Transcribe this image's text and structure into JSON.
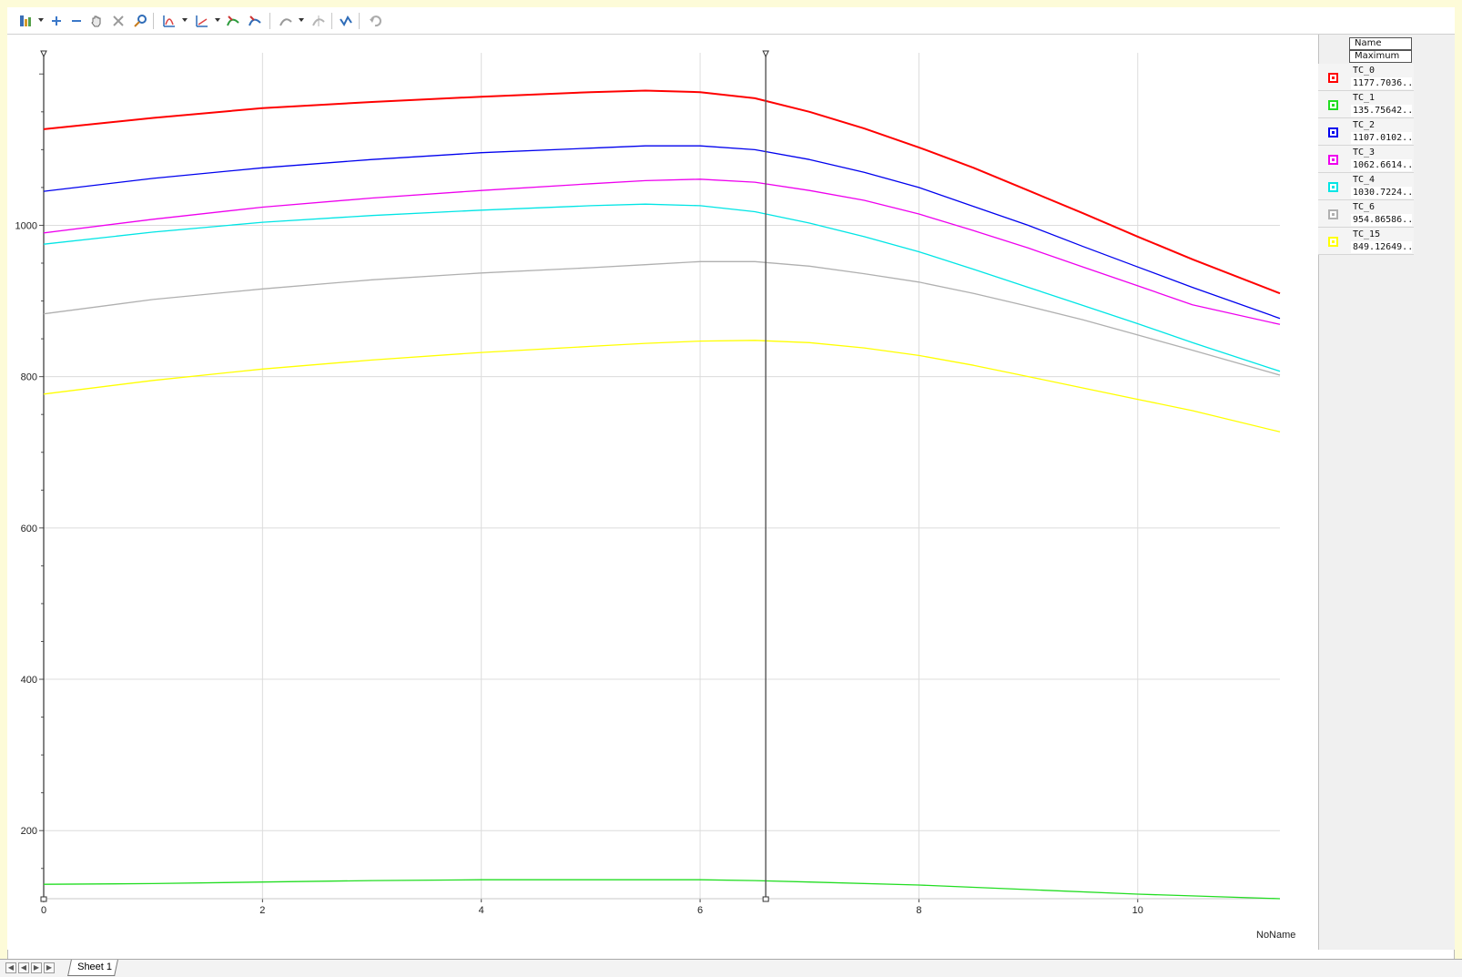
{
  "toolbar": {
    "icons": [
      "chart-settings-icon",
      "zoom-in-icon",
      "zoom-out-icon",
      "pan-hand-icon",
      "reset-zoom-icon",
      "zoom-fit-icon",
      "measure-icon",
      "axis-icon",
      "curve-add-icon",
      "curve-remove-icon",
      "cursor-icon",
      "cursor-remove-icon",
      "curve-fit-icon",
      "undo-icon"
    ]
  },
  "legend": {
    "header_name": "Name",
    "header_value": "Maximum",
    "rows": [
      {
        "name": "TC_0",
        "value": "1177.7036...",
        "color": "#ff0000"
      },
      {
        "name": "TC_1",
        "value": "135.75642...",
        "color": "#22dd22"
      },
      {
        "name": "TC_2",
        "value": "1107.0102...",
        "color": "#0000ee"
      },
      {
        "name": "TC_3",
        "value": "1062.6614...",
        "color": "#ee00ee"
      },
      {
        "name": "TC_4",
        "value": "1030.7224...",
        "color": "#00e5e5"
      },
      {
        "name": "TC_6",
        "value": "954.86586...",
        "color": "#b0b0b0"
      },
      {
        "name": "TC_15",
        "value": "849.12649...",
        "color": "#ffff00"
      }
    ]
  },
  "chart_data": {
    "type": "line",
    "title": "",
    "xlabel": "NoName",
    "ylabel": "",
    "xlim": [
      0,
      11.3
    ],
    "ylim": [
      110,
      1228
    ],
    "x_ticks": [
      "0",
      "2",
      "4",
      "6",
      "8",
      "10"
    ],
    "x_tick_values": [
      0,
      2,
      4,
      6,
      8,
      10
    ],
    "y_ticks": [
      "200",
      "400",
      "600",
      "800",
      "1000"
    ],
    "y_tick_values": [
      200,
      400,
      600,
      800,
      1000
    ],
    "grid": true,
    "cursor_x": 6.6,
    "series": [
      {
        "name": "TC_0",
        "color": "#ff0000",
        "x": [
          0,
          1,
          2,
          3,
          4,
          5,
          5.5,
          6,
          6.5,
          7,
          7.5,
          8,
          8.5,
          9,
          9.5,
          10,
          10.5,
          11.3
        ],
        "y": [
          1127,
          1142,
          1155,
          1163,
          1170,
          1176,
          1178,
          1176,
          1168,
          1150,
          1128,
          1103,
          1076,
          1046,
          1016,
          985,
          955,
          910
        ]
      },
      {
        "name": "TC_1",
        "color": "#22dd22",
        "x": [
          0,
          1,
          2,
          3,
          4,
          5,
          6,
          6.5,
          7,
          8,
          9,
          10,
          11.3
        ],
        "y": [
          129,
          130,
          132,
          134,
          135,
          135,
          135,
          134,
          132,
          128,
          122,
          116,
          110
        ]
      },
      {
        "name": "TC_2",
        "color": "#0000ee",
        "x": [
          0,
          1,
          2,
          3,
          4,
          5,
          5.5,
          6,
          6.5,
          7,
          7.5,
          8,
          8.5,
          9,
          9.5,
          10,
          10.5,
          11.3
        ],
        "y": [
          1045,
          1062,
          1076,
          1087,
          1096,
          1102,
          1105,
          1105,
          1100,
          1087,
          1070,
          1050,
          1025,
          1000,
          972,
          945,
          918,
          877
        ]
      },
      {
        "name": "TC_3",
        "color": "#ee00ee",
        "x": [
          0,
          1,
          2,
          3,
          4,
          5,
          5.5,
          6,
          6.5,
          7,
          7.5,
          8,
          8.5,
          9,
          9.5,
          10,
          10.5,
          11.3
        ],
        "y": [
          990,
          1008,
          1024,
          1036,
          1046,
          1055,
          1059,
          1061,
          1057,
          1046,
          1033,
          1015,
          993,
          970,
          945,
          920,
          895,
          869
        ]
      },
      {
        "name": "TC_4",
        "color": "#00e5e5",
        "x": [
          0,
          1,
          2,
          3,
          4,
          5,
          5.5,
          6,
          6.5,
          7,
          7.5,
          8,
          8.5,
          9,
          9.5,
          10,
          10.5,
          11.3
        ],
        "y": [
          975,
          991,
          1004,
          1013,
          1020,
          1026,
          1028,
          1026,
          1018,
          1003,
          985,
          965,
          942,
          918,
          894,
          870,
          845,
          807
        ]
      },
      {
        "name": "TC_6",
        "color": "#b0b0b0",
        "x": [
          0,
          1,
          2,
          3,
          4,
          5,
          5.5,
          6,
          6.5,
          7,
          7.5,
          8,
          8.5,
          9,
          9.5,
          10,
          10.5,
          11.3
        ],
        "y": [
          883,
          902,
          916,
          928,
          937,
          944,
          948,
          952,
          952,
          946,
          936,
          925,
          910,
          893,
          875,
          855,
          835,
          802
        ]
      },
      {
        "name": "TC_15",
        "color": "#ffff00",
        "x": [
          0,
          1,
          2,
          3,
          4,
          5,
          5.5,
          6,
          6.5,
          7,
          7.5,
          8,
          8.5,
          9,
          9.5,
          10,
          10.5,
          11.3
        ],
        "y": [
          777,
          795,
          810,
          822,
          832,
          840,
          844,
          847,
          848,
          845,
          838,
          828,
          815,
          800,
          785,
          770,
          755,
          727
        ]
      }
    ]
  },
  "statusbar": {
    "sheet_tab": "Sheet 1"
  }
}
